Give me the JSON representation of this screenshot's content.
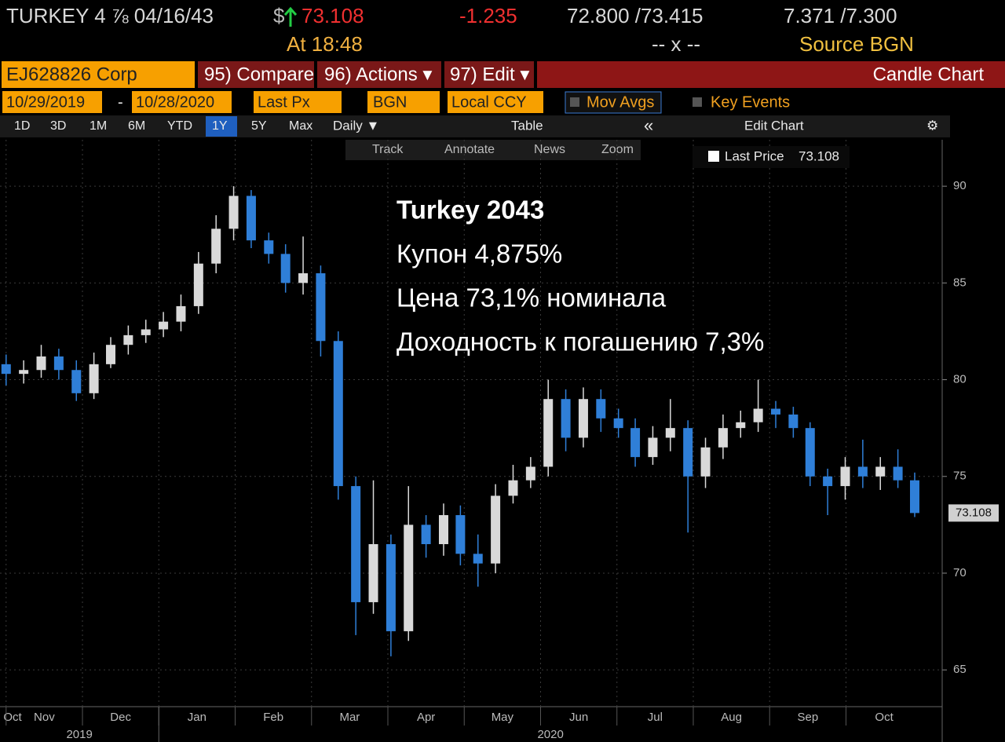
{
  "header": {
    "security": "TURKEY 4 ⅞ 04/16/43",
    "currency": "$",
    "price": "73.108",
    "change": "-1.235",
    "bid_ask": "72.800 /73.415",
    "yields": "7.371 /7.300",
    "time": "At 18:48",
    "size": "-- x --",
    "source": "Source BGN"
  },
  "toolbar": {
    "ticker": "EJ628826 Corp",
    "compare": "95) Compare",
    "actions": "96) Actions ▾",
    "edit": "97) Edit ▾",
    "view": "Candle Chart",
    "start_date": "10/29/2019",
    "dash": "-",
    "end_date": "10/28/2020",
    "field": "Last Px",
    "pricing_source": "BGN",
    "ccy": "Local CCY",
    "mov_avgs": "Mov Avgs",
    "key_events": "Key Events",
    "ranges": [
      "1D",
      "3D",
      "1M",
      "6M",
      "YTD",
      "1Y",
      "5Y",
      "Max"
    ],
    "active_range": 5,
    "period": "Daily ▼",
    "table": "Table",
    "collapse": "«",
    "edit_chart": "Edit Chart",
    "tools": [
      "Track",
      "Annotate",
      "News",
      "Zoom"
    ]
  },
  "chart_data": {
    "type": "candlestick",
    "annotations": [
      "Turkey 2043",
      "Купон 4,875%",
      "Цена 73,1% номинала",
      "Доходность к погашению 7,3%"
    ],
    "series": [
      {
        "name": "Last Price",
        "up_color": "#d9d9d9",
        "down_color": "#2f7fd8",
        "x": [
          0,
          0.23,
          0.46,
          0.69,
          0.92,
          1.15,
          1.37,
          1.6,
          1.83,
          2.06,
          2.29,
          2.52,
          2.75,
          2.98,
          3.21,
          3.44,
          3.66,
          3.89,
          4.12,
          4.35,
          4.58,
          4.81,
          5.04,
          5.27,
          5.5,
          5.73,
          5.95,
          6.18,
          6.41,
          6.64,
          6.87,
          7.1,
          7.33,
          7.56,
          7.79,
          8.02,
          8.24,
          8.47,
          8.7,
          8.93,
          9.16,
          9.39,
          9.62,
          9.85,
          10.08,
          10.31,
          10.53,
          10.76,
          10.99,
          11.22,
          11.45,
          11.68,
          11.9
        ],
        "open": [
          80.8,
          80.3,
          80.5,
          81.2,
          80.5,
          79.3,
          80.8,
          81.8,
          82.3,
          82.6,
          83.0,
          83.8,
          86.0,
          87.8,
          89.5,
          87.2,
          86.5,
          85.0,
          85.5,
          82.0,
          74.5,
          68.5,
          71.5,
          67.0,
          72.5,
          71.5,
          73.0,
          71.0,
          70.5,
          74.0,
          74.8,
          75.5,
          79.0,
          77.0,
          79.0,
          78.0,
          77.5,
          76.0,
          77.0,
          77.5,
          75.0,
          76.5,
          77.5,
          77.8,
          78.5,
          78.2,
          77.5,
          75.0,
          74.5,
          75.5,
          75.0,
          75.5,
          74.8
        ],
        "high": [
          81.3,
          81.0,
          81.8,
          81.6,
          81.0,
          81.4,
          82.2,
          82.8,
          83.1,
          83.5,
          84.4,
          86.6,
          88.5,
          90.0,
          89.8,
          87.6,
          87.0,
          87.4,
          85.9,
          82.5,
          75.0,
          74.8,
          72.0,
          74.5,
          73.0,
          73.6,
          73.5,
          72.0,
          74.6,
          75.6,
          76.0,
          80.0,
          79.5,
          79.6,
          79.5,
          78.5,
          78.0,
          77.6,
          79.0,
          77.9,
          77.0,
          78.2,
          78.4,
          80.0,
          78.9,
          78.6,
          77.8,
          75.4,
          76.0,
          76.9,
          76.0,
          76.4,
          75.2
        ],
        "low": [
          79.7,
          79.8,
          80.1,
          80.0,
          78.9,
          79.0,
          80.6,
          81.3,
          81.9,
          82.2,
          82.5,
          83.4,
          85.5,
          87.2,
          86.8,
          86.0,
          84.5,
          84.4,
          81.2,
          73.8,
          66.8,
          67.9,
          65.7,
          66.5,
          70.8,
          70.9,
          70.4,
          69.3,
          70.0,
          73.6,
          74.4,
          75.0,
          76.3,
          76.5,
          77.3,
          77.0,
          75.5,
          75.6,
          76.3,
          72.1,
          74.4,
          75.9,
          77.0,
          77.3,
          77.5,
          77.0,
          74.5,
          73.0,
          73.8,
          74.4,
          74.3,
          74.4,
          72.9
        ],
        "close": [
          80.3,
          80.5,
          81.2,
          80.5,
          79.3,
          80.8,
          81.8,
          82.3,
          82.6,
          83.0,
          83.8,
          86.0,
          87.8,
          89.5,
          87.2,
          86.5,
          85.0,
          85.5,
          82.0,
          74.5,
          68.5,
          71.5,
          67.0,
          72.5,
          71.5,
          73.0,
          71.0,
          70.5,
          74.0,
          74.8,
          75.5,
          79.0,
          77.0,
          79.0,
          78.0,
          77.5,
          76.0,
          77.0,
          77.5,
          75.0,
          76.5,
          77.5,
          77.8,
          78.5,
          78.2,
          77.5,
          75.0,
          74.5,
          75.5,
          75.0,
          75.5,
          74.8,
          73.108
        ]
      }
    ],
    "xlim": [
      -0.08,
      12.26
    ],
    "xticks": [
      {
        "value": -1,
        "label": "Oct"
      },
      {
        "value": 0,
        "label": "Nov"
      },
      {
        "value": 1,
        "label": "Dec"
      },
      {
        "value": 2,
        "label": "Jan"
      },
      {
        "value": 3,
        "label": "Feb"
      },
      {
        "value": 4,
        "label": "Mar"
      },
      {
        "value": 5,
        "label": "Apr"
      },
      {
        "value": 6,
        "label": "May"
      },
      {
        "value": 7,
        "label": "Jun"
      },
      {
        "value": 8,
        "label": "Jul"
      },
      {
        "value": 9,
        "label": "Aug"
      },
      {
        "value": 10,
        "label": "Sep"
      },
      {
        "value": 11,
        "label": "Oct"
      }
    ],
    "years": [
      "2019",
      "2020"
    ],
    "year_break": 2,
    "ylim": [
      63.1,
      92.4
    ],
    "yticks": [
      65,
      70,
      75,
      80,
      85,
      90
    ],
    "grid": true
  }
}
